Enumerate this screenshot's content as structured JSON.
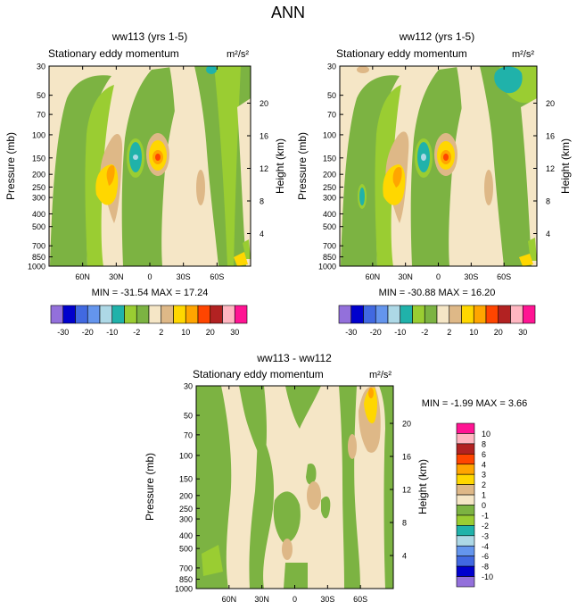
{
  "figure_title": "ANN",
  "colors": {
    "scale1": [
      "#9370db",
      "#0000cd",
      "#4169e1",
      "#6495ed",
      "#add8e6",
      "#20b2aa",
      "#9acd32",
      "#7cb342",
      "#f5e6c6",
      "#deb887",
      "#ffd700",
      "#ffa500",
      "#ff4500",
      "#b22222",
      "#ffb6c1",
      "#ff1493"
    ],
    "scale2": [
      "#9370db",
      "#0000cd",
      "#4169e1",
      "#6495ed",
      "#add8e6",
      "#20b2aa",
      "#9acd32",
      "#7cb342",
      "#f5e6c6",
      "#deb887",
      "#ffd700",
      "#ffa500",
      "#ff4500",
      "#b22222",
      "#ffb6c1",
      "#ff1493"
    ]
  },
  "chart_data": [
    {
      "type": "heatmap",
      "id": "p1",
      "title": "ww113 (yrs 1-5)",
      "subtitle": "Stationary eddy momentum",
      "units": "m²/s²",
      "ylabel": "Pressure (mb)",
      "y2label": "Height (km)",
      "x_ticks": [
        "60N",
        "30N",
        "0",
        "30S",
        "60S"
      ],
      "x_tick_values": [
        60,
        30,
        0,
        -30,
        -60
      ],
      "xlim": [
        90,
        -90
      ],
      "y_ticks": [
        "30",
        "50",
        "70",
        "100",
        "150",
        "200",
        "250",
        "300",
        "400",
        "500",
        "700",
        "850",
        "1000"
      ],
      "y_tick_values": [
        30,
        50,
        70,
        100,
        150,
        200,
        250,
        300,
        400,
        500,
        700,
        850,
        1000
      ],
      "ylim": [
        30,
        1000
      ],
      "height_ticks": [
        "4",
        "8",
        "12",
        "16",
        "20"
      ],
      "height_values": [
        4,
        8,
        12,
        16,
        20
      ],
      "stats": "MIN = -31.54   MAX =  17.24",
      "min": -31.54,
      "max": 17.24,
      "colorbar_labels": [
        "-30",
        "-20",
        "-10",
        "-2",
        "2",
        "10",
        "20",
        "30"
      ]
    },
    {
      "type": "heatmap",
      "id": "p2",
      "title": "ww112 (yrs 1-5)",
      "subtitle": "Stationary eddy momentum",
      "units": "m²/s²",
      "ylabel": "Pressure (mb)",
      "y2label": "Height (km)",
      "x_ticks": [
        "60N",
        "30N",
        "0",
        "30S",
        "60S"
      ],
      "x_tick_values": [
        60,
        30,
        0,
        -30,
        -60
      ],
      "xlim": [
        90,
        -90
      ],
      "y_ticks": [
        "30",
        "50",
        "70",
        "100",
        "150",
        "200",
        "250",
        "300",
        "400",
        "500",
        "700",
        "850",
        "1000"
      ],
      "y_tick_values": [
        30,
        50,
        70,
        100,
        150,
        200,
        250,
        300,
        400,
        500,
        700,
        850,
        1000
      ],
      "ylim": [
        30,
        1000
      ],
      "height_ticks": [
        "4",
        "8",
        "12",
        "16",
        "20"
      ],
      "height_values": [
        4,
        8,
        12,
        16,
        20
      ],
      "stats": "MIN = -30.88   MAX =  16.20",
      "min": -30.88,
      "max": 16.2,
      "colorbar_labels": [
        "-30",
        "-20",
        "-10",
        "-2",
        "2",
        "10",
        "20",
        "30"
      ]
    },
    {
      "type": "heatmap",
      "id": "p3",
      "title": "ww113 - ww112",
      "subtitle": "Stationary eddy momentum",
      "units": "m²/s²",
      "ylabel": "Pressure (mb)",
      "y2label": "Height (km)",
      "x_ticks": [
        "60N",
        "30N",
        "0",
        "30S",
        "60S"
      ],
      "x_tick_values": [
        60,
        30,
        0,
        -30,
        -60
      ],
      "xlim": [
        90,
        -90
      ],
      "y_ticks": [
        "30",
        "50",
        "70",
        "100",
        "150",
        "200",
        "250",
        "300",
        "400",
        "500",
        "700",
        "850",
        "1000"
      ],
      "y_tick_values": [
        30,
        50,
        70,
        100,
        150,
        200,
        250,
        300,
        400,
        500,
        700,
        850,
        1000
      ],
      "ylim": [
        30,
        1000
      ],
      "height_ticks": [
        "4",
        "8",
        "12",
        "16",
        "20"
      ],
      "height_values": [
        4,
        8,
        12,
        16,
        20
      ],
      "stats": "MIN =  -1.99   MAX =   3.66",
      "min": -1.99,
      "max": 3.66,
      "colorbar_labels": [
        "10",
        "8",
        "6",
        "4",
        "3",
        "2",
        "1",
        "0",
        "-1",
        "-2",
        "-3",
        "-4",
        "-6",
        "-8",
        "-10"
      ]
    }
  ]
}
